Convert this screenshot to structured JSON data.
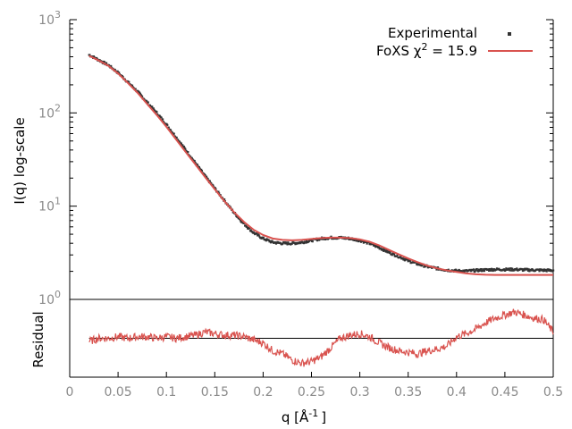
{
  "chart_data": [
    {
      "type": "scatter",
      "panel": "main",
      "title": "",
      "xlabel": "",
      "ylabel": "I(q) log-scale",
      "yscale": "log",
      "xlim": [
        0,
        0.5
      ],
      "ylim": [
        1,
        1000
      ],
      "yticks": [
        {
          "base": "10",
          "exp": "0",
          "value": 1
        },
        {
          "base": "10",
          "exp": "1",
          "value": 10
        },
        {
          "base": "10",
          "exp": "2",
          "value": 100
        },
        {
          "base": "10",
          "exp": "3",
          "value": 1000
        }
      ],
      "grid": false,
      "legend_position": "top-right",
      "series": [
        {
          "name": "Experimental",
          "style": "points",
          "color": "#333333",
          "x": [
            0.02,
            0.03,
            0.04,
            0.05,
            0.06,
            0.07,
            0.08,
            0.09,
            0.1,
            0.11,
            0.12,
            0.13,
            0.14,
            0.15,
            0.16,
            0.17,
            0.18,
            0.19,
            0.2,
            0.21,
            0.22,
            0.23,
            0.24,
            0.25,
            0.26,
            0.27,
            0.28,
            0.29,
            0.3,
            0.31,
            0.32,
            0.33,
            0.34,
            0.35,
            0.36,
            0.37,
            0.38,
            0.39,
            0.4,
            0.41,
            0.42,
            0.43,
            0.44,
            0.45,
            0.46,
            0.47,
            0.48,
            0.49,
            0.5
          ],
          "y": [
            420,
            370,
            325,
            270,
            215,
            170,
            130,
            100,
            75,
            55,
            40,
            29,
            21,
            15.5,
            11.5,
            8.5,
            6.5,
            5.2,
            4.5,
            4.1,
            4.0,
            4.0,
            4.1,
            4.3,
            4.5,
            4.6,
            4.6,
            4.5,
            4.3,
            4.0,
            3.6,
            3.2,
            2.9,
            2.6,
            2.4,
            2.25,
            2.15,
            2.07,
            2.03,
            2.02,
            2.05,
            2.08,
            2.1,
            2.1,
            2.1,
            2.08,
            2.07,
            2.06,
            2.05
          ]
        },
        {
          "name": "FoXS χ² = 15.9",
          "legend_text": "FoXS χ",
          "legend_sup": "2",
          "legend_suffix": " = 15.9",
          "style": "line",
          "color": "#d9534f",
          "x": [
            0.02,
            0.03,
            0.04,
            0.05,
            0.06,
            0.07,
            0.08,
            0.09,
            0.1,
            0.11,
            0.12,
            0.13,
            0.14,
            0.15,
            0.16,
            0.17,
            0.18,
            0.19,
            0.2,
            0.21,
            0.22,
            0.23,
            0.24,
            0.25,
            0.26,
            0.27,
            0.28,
            0.29,
            0.3,
            0.31,
            0.32,
            0.33,
            0.34,
            0.35,
            0.36,
            0.37,
            0.38,
            0.39,
            0.4,
            0.41,
            0.42,
            0.43,
            0.44,
            0.45,
            0.46,
            0.47,
            0.48,
            0.49,
            0.5
          ],
          "y": [
            410,
            365,
            320,
            265,
            210,
            165,
            125,
            95,
            71,
            52,
            38,
            28,
            20.5,
            15.2,
            11.3,
            8.6,
            6.8,
            5.6,
            4.9,
            4.5,
            4.35,
            4.3,
            4.35,
            4.45,
            4.55,
            4.6,
            4.6,
            4.55,
            4.4,
            4.15,
            3.8,
            3.4,
            3.05,
            2.75,
            2.5,
            2.3,
            2.15,
            2.05,
            1.97,
            1.9,
            1.86,
            1.84,
            1.83,
            1.83,
            1.83,
            1.83,
            1.83,
            1.83,
            1.83
          ]
        }
      ]
    },
    {
      "type": "line",
      "panel": "residual",
      "title": "",
      "xlabel": "q [Å",
      "xlabel_sup": "-1",
      "xlabel_end": "]",
      "ylabel": "Residual",
      "xlim": [
        0,
        0.5
      ],
      "ylim": [
        -2.5,
        2.5
      ],
      "xticks": [
        "0",
        "0.05",
        "0.1",
        "0.15",
        "0.2",
        "0.25",
        "0.3",
        "0.35",
        "0.4",
        "0.45",
        "0.5"
      ],
      "xtick_values": [
        0,
        0.05,
        0.1,
        0.15,
        0.2,
        0.25,
        0.3,
        0.35,
        0.4,
        0.45,
        0.5
      ],
      "grid": false,
      "zero_line_color": "#000000",
      "series": [
        {
          "name": "",
          "color": "#d9534f",
          "x": [
            0.02,
            0.03,
            0.04,
            0.05,
            0.06,
            0.07,
            0.08,
            0.09,
            0.1,
            0.11,
            0.12,
            0.13,
            0.14,
            0.15,
            0.16,
            0.17,
            0.18,
            0.19,
            0.2,
            0.21,
            0.22,
            0.23,
            0.24,
            0.25,
            0.26,
            0.27,
            0.28,
            0.29,
            0.3,
            0.31,
            0.32,
            0.33,
            0.34,
            0.35,
            0.36,
            0.37,
            0.38,
            0.39,
            0.4,
            0.41,
            0.42,
            0.43,
            0.44,
            0.45,
            0.46,
            0.47,
            0.48,
            0.49,
            0.5
          ],
          "y": [
            -0.2,
            0.0,
            0.0,
            0.1,
            0.0,
            0.1,
            0.1,
            0.0,
            0.1,
            0.0,
            0.1,
            0.2,
            0.4,
            0.3,
            0.2,
            0.2,
            0.1,
            -0.1,
            -0.3,
            -0.8,
            -1.0,
            -1.4,
            -1.6,
            -1.5,
            -1.2,
            -0.6,
            0.0,
            0.2,
            0.3,
            0.1,
            -0.3,
            -0.6,
            -0.8,
            -0.9,
            -1.0,
            -0.8,
            -0.7,
            -0.5,
            0.1,
            0.3,
            0.6,
            1.0,
            1.3,
            1.5,
            1.7,
            1.5,
            1.3,
            1.2,
            0.4
          ]
        }
      ]
    }
  ]
}
